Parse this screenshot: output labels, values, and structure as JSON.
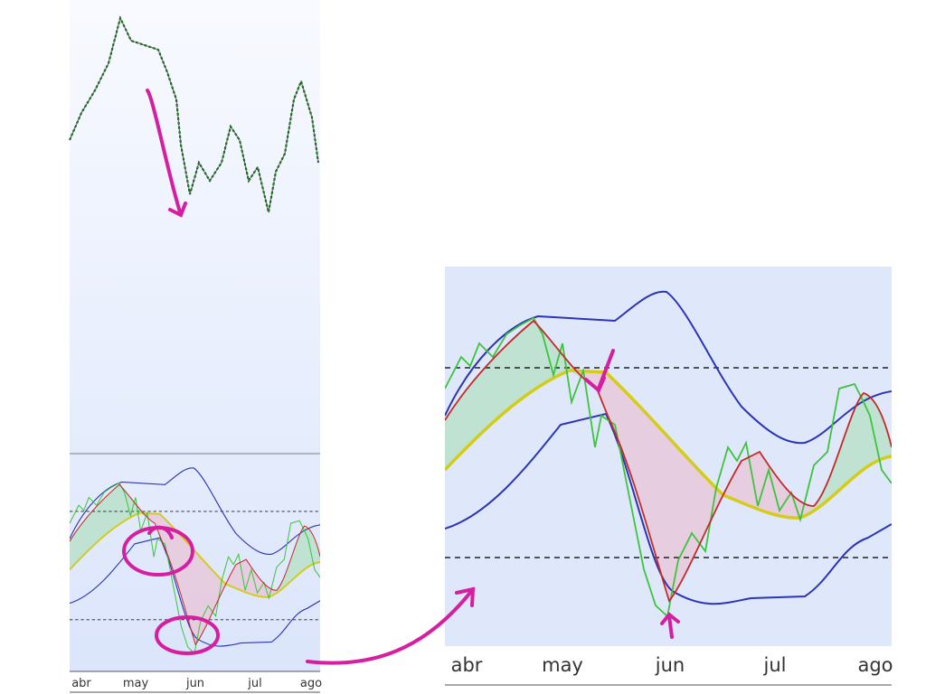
{
  "left_panel": {
    "x_labels": [
      "abr",
      "may",
      "jun",
      "jul",
      "ago"
    ]
  },
  "zoom_panel": {
    "x_labels": [
      "abr",
      "may",
      "jun",
      "jul",
      "ago"
    ]
  }
}
